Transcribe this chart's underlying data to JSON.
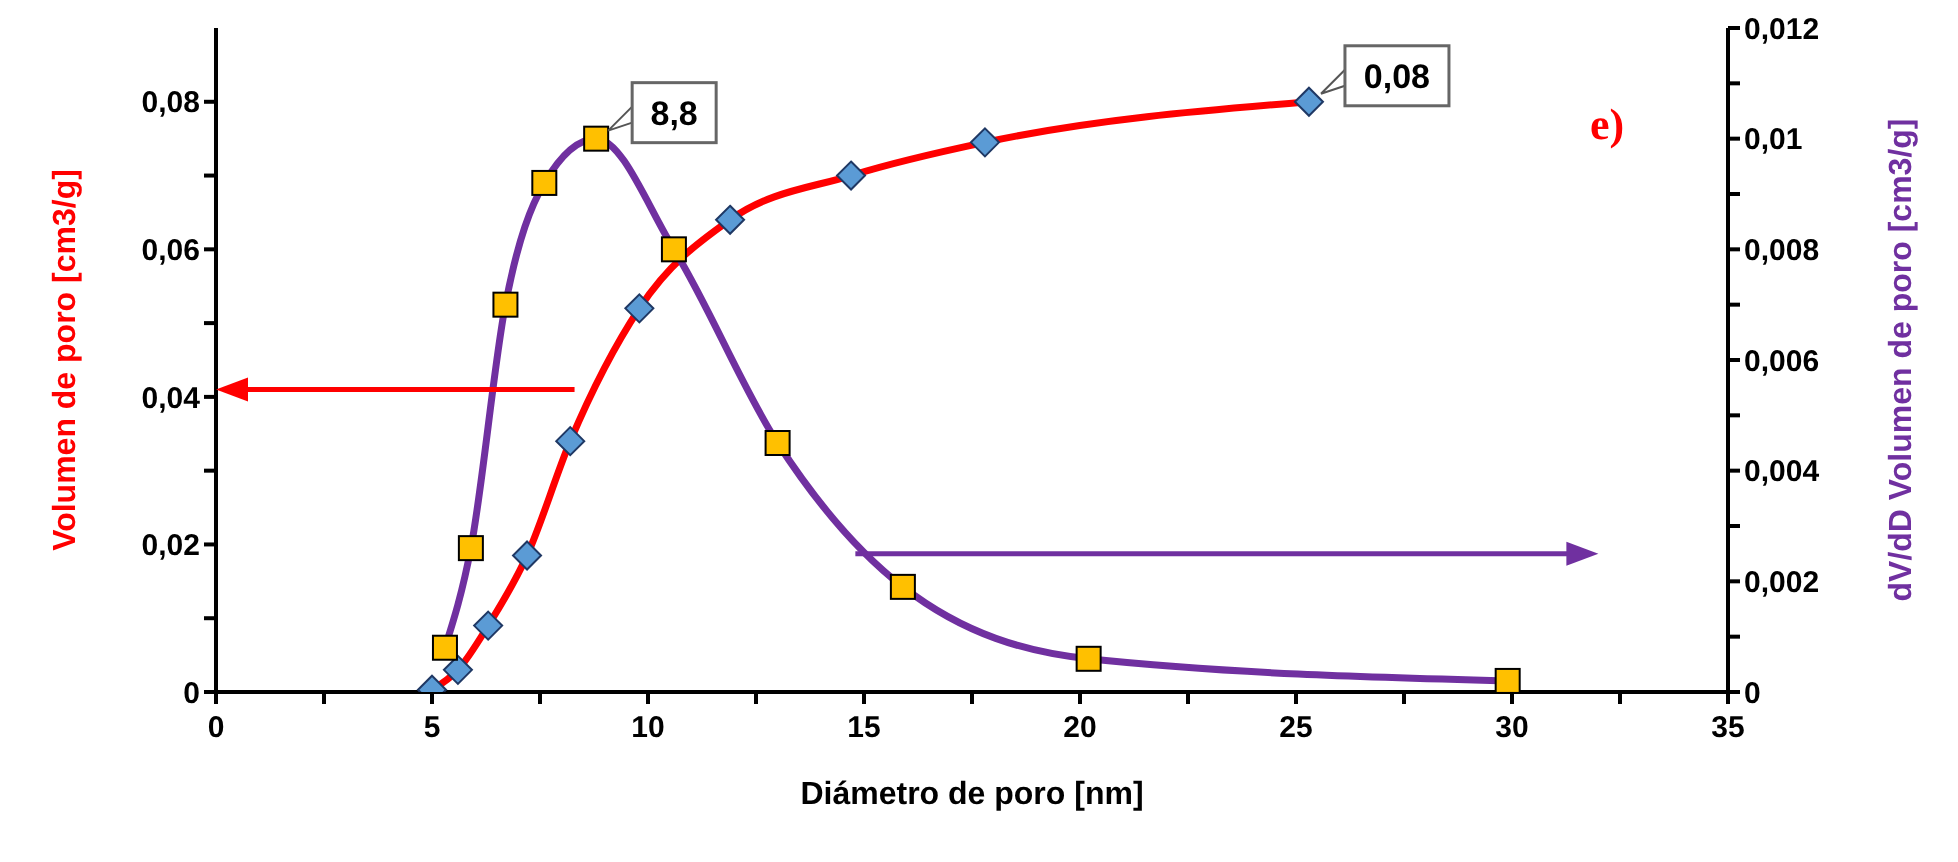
{
  "chart_data": {
    "type": "line",
    "xlabel": "Diámetro de poro [nm]",
    "ylabel": "Volumen de poro [cm3/g]",
    "y2label": "dV/dD Volumen de poro [cm3/g]",
    "xlim": [
      0,
      35
    ],
    "xticks": [
      0,
      {
        "value": 2.5,
        "label": null
      },
      5,
      {
        "value": 7.5,
        "label": null
      },
      10,
      {
        "value": 12.5,
        "label": null
      },
      15,
      {
        "value": 17.5,
        "label": null
      },
      20,
      {
        "value": 22.5,
        "label": null
      },
      25,
      {
        "value": 27.5,
        "label": null
      },
      30,
      {
        "value": 32.5,
        "label": null
      },
      35
    ],
    "ylim": [
      0,
      0.09
    ],
    "yticks": [
      0,
      {
        "value": 0.01,
        "label": null
      },
      {
        "value": 0.02,
        "label": "0,02"
      },
      {
        "value": 0.03,
        "label": null
      },
      {
        "value": 0.04,
        "label": "0,04"
      },
      {
        "value": 0.05,
        "label": null
      },
      {
        "value": 0.06,
        "label": "0,06"
      },
      {
        "value": 0.07,
        "label": null
      },
      {
        "value": 0.08,
        "label": "0,08"
      }
    ],
    "y2lim": [
      0,
      0.012
    ],
    "y2ticks": [
      0,
      {
        "value": 0.001,
        "label": null
      },
      {
        "value": 0.002,
        "label": "0,002"
      },
      {
        "value": 0.003,
        "label": null
      },
      {
        "value": 0.004,
        "label": "0,004"
      },
      {
        "value": 0.005,
        "label": null
      },
      {
        "value": 0.006,
        "label": "0,006"
      },
      {
        "value": 0.007,
        "label": null
      },
      {
        "value": 0.008,
        "label": "0,008"
      },
      {
        "value": 0.009,
        "label": null
      },
      {
        "value": 0.01,
        "label": "0,01"
      },
      {
        "value": 0.011,
        "label": null
      },
      {
        "value": 0.012,
        "label": "0,012"
      }
    ],
    "grid": false,
    "legend": false,
    "series": [
      {
        "color": "#ff0000",
        "marker": "diamond",
        "colors": [
          "#5b9bd5",
          "#5b9bd5",
          "#5b9bd5",
          "#5b9bd5",
          "#5b9bd5",
          "#5b9bd5",
          "#5b9bd5",
          "#5b9bd5",
          "#5b9bd5",
          "#5b9bd5"
        ],
        "x": [
          5.0,
          5.6,
          6.3,
          7.2,
          8.2,
          9.8,
          11.9,
          14.7,
          17.8,
          25.3
        ],
        "values": [
          0.0003,
          0.003,
          0.009,
          0.0185,
          0.034,
          0.052,
          0.064,
          0.07,
          0.0745,
          0.08
        ],
        "value_labels": [
          null,
          null,
          null,
          null,
          null,
          null,
          null,
          null,
          null,
          "0,08"
        ]
      },
      {
        "color": "#7030a0",
        "marker": "square",
        "axis": "y2",
        "colors": [
          "#ffc000",
          "#ffc000",
          "#ffc000",
          "#ffc000",
          "#ffc000",
          "#ffc000",
          "#ffc000",
          "#ffc000",
          "#ffc000",
          "#ffc000"
        ],
        "x": [
          5.3,
          5.9,
          6.7,
          7.6,
          8.8,
          10.6,
          13.0,
          15.9,
          20.2,
          29.9
        ],
        "values": [
          0.0008,
          0.0026,
          0.007,
          0.0092,
          0.01,
          0.008,
          0.0045,
          0.0019,
          0.0006,
          0.0002
        ]
      }
    ],
    "annotations": [
      {
        "text": "8,8",
        "x": 8.8,
        "y": 0.075
      },
      "e)"
    ]
  }
}
